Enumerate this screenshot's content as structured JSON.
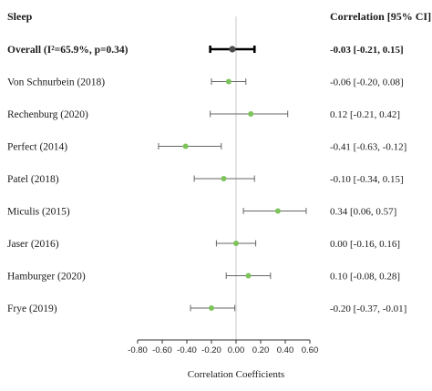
{
  "headers": {
    "left": "Sleep",
    "right": "Correlation [95% CI]"
  },
  "colors": {
    "point": "#7cc35a",
    "whisker": "#666666",
    "overall": "#000000",
    "ref_line": "#c8c8c8",
    "axis": "#333333"
  },
  "chart_data": {
    "type": "forest",
    "xlabel": "Correlation Coefficients",
    "xlim": [
      -0.8,
      0.6
    ],
    "ticks": [
      -0.8,
      -0.6,
      -0.4,
      -0.2,
      0.0,
      0.2,
      0.4,
      0.6
    ],
    "tick_labels": [
      "-0.80",
      "-0.60",
      "-0.40",
      "-0.20",
      "0.00",
      "0.20",
      "0.40",
      "0.60"
    ],
    "reference_line": 0.0,
    "rows": [
      {
        "label": "Overall (I²=65.9%, p=0.34)",
        "est": -0.03,
        "lo": -0.21,
        "hi": 0.15,
        "ci_text": "-0.03 [-0.21, 0.15]",
        "overall": true
      },
      {
        "label": "Von Schnurbein (2018)",
        "est": -0.06,
        "lo": -0.2,
        "hi": 0.08,
        "ci_text": "-0.06 [-0.20, 0.08]"
      },
      {
        "label": "Rechenburg (2020)",
        "est": 0.12,
        "lo": -0.21,
        "hi": 0.42,
        "ci_text": "0.12 [-0.21, 0.42]"
      },
      {
        "label": "Perfect (2014)",
        "est": -0.41,
        "lo": -0.63,
        "hi": -0.12,
        "ci_text": "-0.41 [-0.63, -0.12]"
      },
      {
        "label": "Patel (2018)",
        "est": -0.1,
        "lo": -0.34,
        "hi": 0.15,
        "ci_text": "-0.10 [-0.34, 0.15]"
      },
      {
        "label": "Miculis (2015)",
        "est": 0.34,
        "lo": 0.06,
        "hi": 0.57,
        "ci_text": "0.34 [0.06, 0.57]"
      },
      {
        "label": "Jaser (2016)",
        "est": 0.0,
        "lo": -0.16,
        "hi": 0.16,
        "ci_text": "0.00 [-0.16, 0.16]"
      },
      {
        "label": "Hamburger (2020)",
        "est": 0.1,
        "lo": -0.08,
        "hi": 0.28,
        "ci_text": "0.10 [-0.08, 0.28]"
      },
      {
        "label": "Frye (2019)",
        "est": -0.2,
        "lo": -0.37,
        "hi": -0.01,
        "ci_text": "-0.20 [-0.37, -0.01]"
      }
    ]
  }
}
